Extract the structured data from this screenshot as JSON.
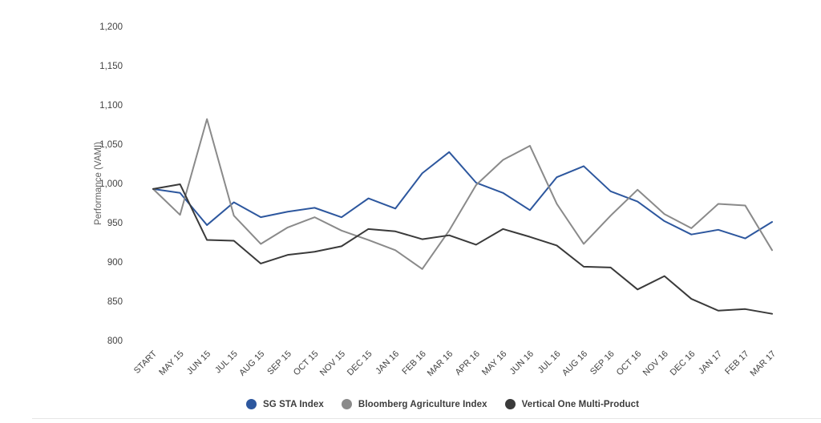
{
  "chart_data": {
    "type": "line",
    "title": "",
    "xlabel": "",
    "ylabel": "Performance (VAMI)",
    "ylim": [
      800,
      1200
    ],
    "ytick_step": 50,
    "ytick_labels": [
      "1,200",
      "1,150",
      "1,100",
      "1,050",
      "1,000",
      "950",
      "900",
      "850",
      "800"
    ],
    "grid": false,
    "legend_position": "bottom",
    "categories": [
      "START",
      "MAY 15",
      "JUN 15",
      "JUL 15",
      "AUG 15",
      "SEP 15",
      "OCT 15",
      "NOV 15",
      "DEC 15",
      "JAN 16",
      "FEB 16",
      "MAR 16",
      "APR 16",
      "MAY 16",
      "JUN 16",
      "JUL 16",
      "AUG 16",
      "SEP 16",
      "OCT 16",
      "NOV 16",
      "DEC 16",
      "JAN 17",
      "FEB 17",
      "MAR 17"
    ],
    "series": [
      {
        "name": "SG STA Index",
        "color": "#2d579e",
        "values": [
          993,
          988,
          947,
          976,
          957,
          964,
          969,
          957,
          981,
          968,
          1013,
          1040,
          1001,
          988,
          966,
          1008,
          1022,
          990,
          977,
          952,
          935,
          941,
          930,
          951
        ]
      },
      {
        "name": "Bloomberg Agriculture Index",
        "color": "#8a8a8a",
        "values": [
          993,
          960,
          1082,
          959,
          923,
          944,
          957,
          940,
          928,
          915,
          891,
          940,
          998,
          1030,
          1048,
          974,
          923,
          959,
          992,
          961,
          943,
          974,
          972,
          915
        ]
      },
      {
        "name": "Vertical One Multi-Product",
        "color": "#3a3a3a",
        "values": [
          993,
          999,
          928,
          927,
          898,
          909,
          913,
          920,
          942,
          939,
          929,
          934,
          922,
          942,
          932,
          921,
          894,
          893,
          865,
          882,
          853,
          838,
          840,
          834
        ]
      }
    ]
  },
  "colors": {
    "axis_text": "#424242",
    "legend_text": "#3c3c3c",
    "bottom_rule": "#e6e6e6"
  }
}
